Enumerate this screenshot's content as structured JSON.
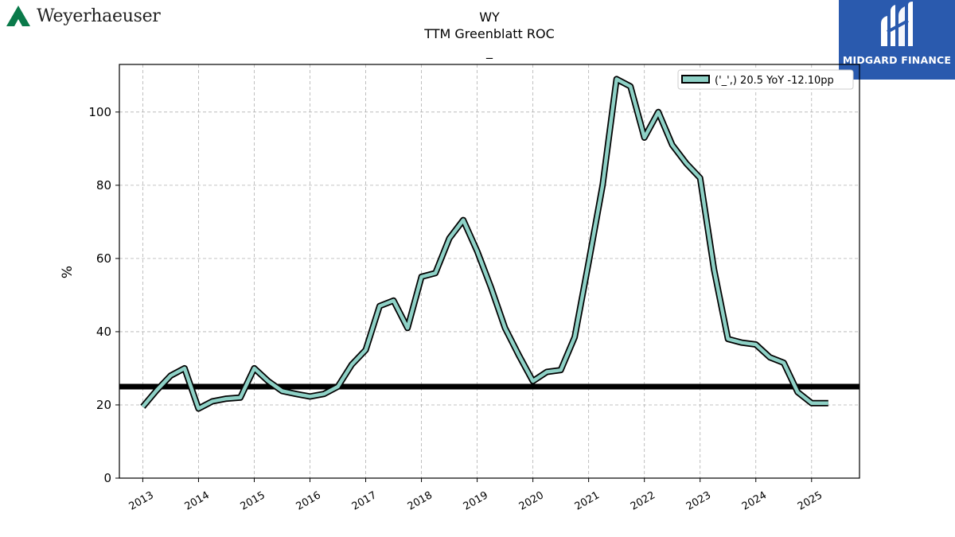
{
  "header": {
    "company_name": "Weyerhaeuser",
    "sponsor_name": "MIDGARD FINANCE"
  },
  "chart_data": {
    "type": "line",
    "title": "WY",
    "subtitle": "TTM Greenblatt ROC",
    "subtitle2": "_",
    "ylabel": "%",
    "xlabel": "",
    "ylim": [
      0,
      113
    ],
    "xlim": [
      2012.58,
      2025.86
    ],
    "yticks": [
      0,
      20,
      40,
      60,
      80,
      100
    ],
    "xticks": [
      "2013",
      "2014",
      "2015",
      "2016",
      "2017",
      "2018",
      "2019",
      "2020",
      "2021",
      "2022",
      "2023",
      "2024",
      "2025"
    ],
    "grid": true,
    "legend_position": "top-right",
    "reference_line": 25,
    "colors": {
      "series": "#8ed1c6",
      "outline": "#000000",
      "grid": "#b0b0b0",
      "reference": "#000000"
    },
    "series": [
      {
        "name": "('_',) 20.5 YoY -12.10pp",
        "x": [
          2013.0,
          2013.25,
          2013.5,
          2013.75,
          2014.0,
          2014.25,
          2014.5,
          2014.75,
          2015.0,
          2015.25,
          2015.5,
          2015.75,
          2016.0,
          2016.25,
          2016.5,
          2016.75,
          2017.0,
          2017.25,
          2017.5,
          2017.75,
          2018.0,
          2018.25,
          2018.5,
          2018.75,
          2019.0,
          2019.25,
          2019.5,
          2019.75,
          2020.0,
          2020.25,
          2020.5,
          2020.75,
          2021.0,
          2021.25,
          2021.5,
          2021.75,
          2022.0,
          2022.25,
          2022.5,
          2022.75,
          2023.0,
          2023.25,
          2023.5,
          2023.75,
          2024.0,
          2024.25,
          2024.5,
          2024.75,
          2025.0,
          2025.3
        ],
        "values": [
          19.5,
          24,
          28,
          30,
          19,
          21,
          21.7,
          22,
          30,
          26.5,
          23.8,
          23,
          22.3,
          23,
          25,
          31,
          35,
          47,
          48.5,
          41,
          55,
          56,
          65.5,
          70.5,
          62,
          52,
          41,
          33.5,
          26.5,
          29,
          29.5,
          38.5,
          59,
          80,
          109,
          107,
          93,
          100,
          91,
          86,
          82,
          57,
          38,
          37,
          36.5,
          33,
          31.5,
          23.5,
          20.5,
          20.5
        ]
      }
    ]
  }
}
